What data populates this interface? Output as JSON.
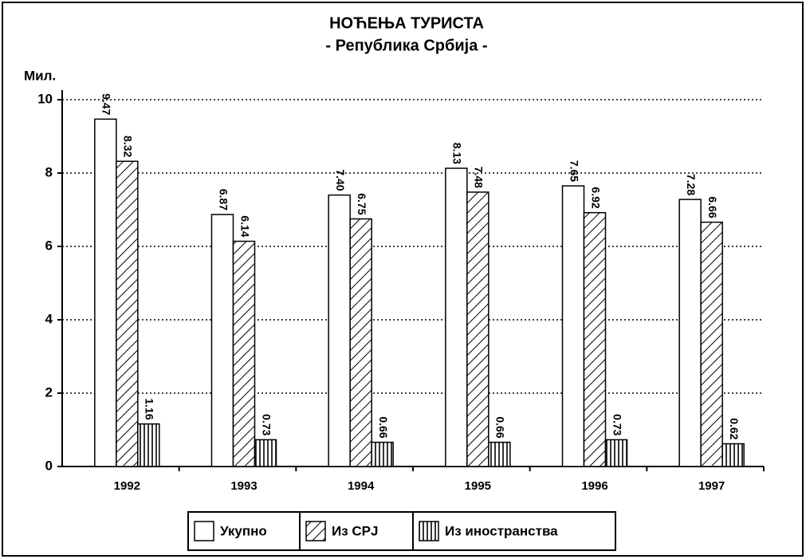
{
  "chart_data": {
    "type": "bar",
    "title": "НОЋЕЊА ТУРИСТА",
    "subtitle": "- Република Србија -",
    "y_label": "Мил.",
    "categories": [
      "1992",
      "1993",
      "1994",
      "1995",
      "1996",
      "1997"
    ],
    "series": [
      {
        "name": "Укупно",
        "color": "#ffffff",
        "pattern": "none",
        "values": [
          9.47,
          6.87,
          7.4,
          8.13,
          7.65,
          7.28
        ],
        "value_labels": [
          "9.47",
          "6.87",
          "7.40",
          "8.13",
          "7.65",
          "7.28"
        ]
      },
      {
        "name": "Из СРЈ",
        "color": "#ffffff",
        "pattern": "diagonal",
        "values": [
          8.32,
          6.14,
          6.75,
          7.48,
          6.92,
          6.66
        ],
        "value_labels": [
          "8.32",
          "6.14",
          "6.75",
          "7.48",
          "6.92",
          "6.66"
        ]
      },
      {
        "name": "Из иностранства",
        "color": "#ffffff",
        "pattern": "vertical",
        "values": [
          1.16,
          0.73,
          0.66,
          0.66,
          0.73,
          0.62
        ],
        "value_labels": [
          "1.16",
          "0.73",
          "0.66",
          "0.66",
          "0.73",
          "0.62"
        ]
      }
    ],
    "ylim": [
      0,
      10
    ],
    "yticks": [
      0,
      2,
      4,
      6,
      8,
      10
    ],
    "grid": true,
    "legend": "bottom"
  }
}
